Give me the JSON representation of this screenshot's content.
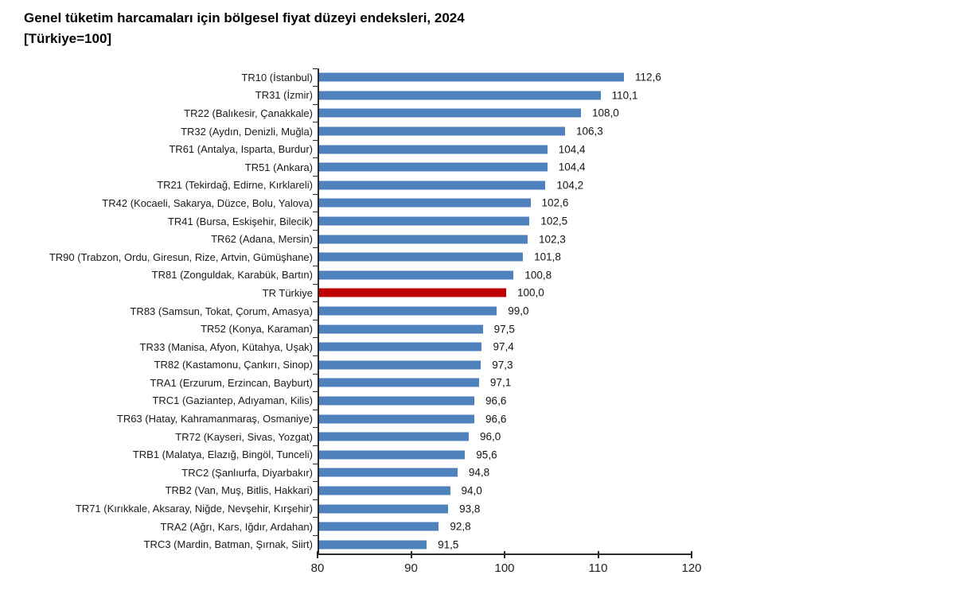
{
  "chart_data": {
    "type": "bar",
    "orientation": "horizontal",
    "title": "Genel tüketim harcamaları için bölgesel fiyat düzeyi endeksleri, 2024",
    "subtitle": "[Türkiye=100]",
    "xlim": [
      80,
      120
    ],
    "x_ticks": [
      80,
      90,
      100,
      110,
      120
    ],
    "grid": false,
    "bar_color": "#4f81bd",
    "highlight_color": "#c00000",
    "highlight_index": 12,
    "categories": [
      "TR10 (İstanbul)",
      "TR31 (İzmir)",
      "TR22 (Balıkesir, Çanakkale)",
      "TR32 (Aydın, Denizli, Muğla)",
      "TR61 (Antalya, Isparta, Burdur)",
      "TR51 (Ankara)",
      "TR21 (Tekirdağ, Edirne, Kırklareli)",
      "TR42 (Kocaeli, Sakarya, Düzce, Bolu, Yalova)",
      "TR41 (Bursa, Eskişehir, Bilecik)",
      "TR62 (Adana, Mersin)",
      "TR90 (Trabzon, Ordu, Giresun, Rize, Artvin, Gümüşhane)",
      "TR81 (Zonguldak, Karabük, Bartın)",
      "TR Türkiye",
      "TR83 (Samsun, Tokat, Çorum, Amasya)",
      "TR52 (Konya, Karaman)",
      "TR33 (Manisa, Afyon, Kütahya, Uşak)",
      "TR82 (Kastamonu, Çankırı, Sinop)",
      "TRA1 (Erzurum, Erzincan, Bayburt)",
      "TRC1 (Gaziantep, Adıyaman, Kilis)",
      "TR63 (Hatay, Kahramanmaraş, Osmaniye)",
      "TR72 (Kayseri, Sivas, Yozgat)",
      "TRB1 (Malatya, Elazığ, Bingöl, Tunceli)",
      "TRC2 (Şanlıurfa, Diyarbakır)",
      "TRB2 (Van, Muş, Bitlis, Hakkari)",
      "TR71 (Kırıkkale, Aksaray, Niğde, Nevşehir, Kırşehir)",
      "TRA2 (Ağrı, Kars, Iğdır, Ardahan)",
      "TRC3 (Mardin, Batman, Şırnak, Siirt)"
    ],
    "values": [
      112.6,
      110.1,
      108.0,
      106.3,
      104.4,
      104.4,
      104.2,
      102.6,
      102.5,
      102.3,
      101.8,
      100.8,
      100.0,
      99.0,
      97.5,
      97.4,
      97.3,
      97.1,
      96.6,
      96.6,
      96.0,
      95.6,
      94.8,
      94.0,
      93.8,
      92.8,
      91.5
    ],
    "value_labels": [
      "112,6",
      "110,1",
      "108,0",
      "106,3",
      "104,4",
      "104,4",
      "104,2",
      "102,6",
      "102,5",
      "102,3",
      "101,8",
      "100,8",
      "100,0",
      "99,0",
      "97,5",
      "97,4",
      "97,3",
      "97,1",
      "96,6",
      "96,6",
      "96,0",
      "95,6",
      "94,8",
      "94,0",
      "93,8",
      "92,8",
      "91,5"
    ]
  }
}
